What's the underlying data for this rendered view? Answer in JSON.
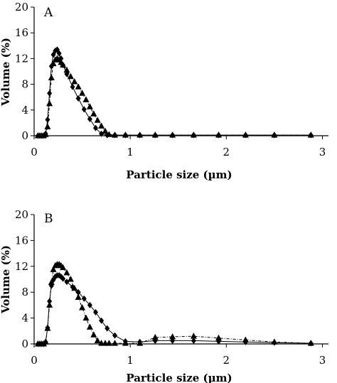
{
  "chart_data": [
    {
      "type": "line",
      "panel_label": "A",
      "xlabel": "Particle size (µm)",
      "ylabel": "Volume (%)",
      "xlim": [
        0,
        3.1
      ],
      "ylim": [
        0,
        20
      ],
      "xticks": [
        0,
        1,
        2,
        3
      ],
      "yticks": [
        0,
        4,
        8,
        12,
        16,
        20
      ],
      "grid": false,
      "series": [
        {
          "marker": "diamond",
          "line": "solid",
          "x": [
            0.04,
            0.06,
            0.08,
            0.1,
            0.12,
            0.14,
            0.16,
            0.18,
            0.2,
            0.22,
            0.24,
            0.26,
            0.28,
            0.3,
            0.34,
            0.4,
            0.46,
            0.52,
            0.58,
            0.64,
            0.7,
            0.76,
            0.84,
            0.95,
            1.1,
            1.26,
            1.44,
            1.66,
            1.92,
            2.2,
            2.5,
            2.88
          ],
          "y": [
            0,
            0,
            0,
            0,
            0.3,
            2.5,
            6.6,
            10.8,
            12.6,
            13.2,
            13.4,
            12.8,
            12.0,
            11.0,
            9.6,
            7.6,
            5.8,
            4.1,
            2.6,
            1.2,
            0.3,
            0.1,
            0.1,
            0.1,
            0.1,
            0.1,
            0.1,
            0.1,
            0.1,
            0.1,
            0.1,
            0.1
          ]
        },
        {
          "marker": "triangle",
          "line": "dash-dot",
          "x": [
            0.04,
            0.06,
            0.08,
            0.1,
            0.12,
            0.14,
            0.16,
            0.18,
            0.2,
            0.22,
            0.24,
            0.26,
            0.28,
            0.3,
            0.34,
            0.38,
            0.42,
            0.46,
            0.5,
            0.54,
            0.58,
            0.62,
            0.66,
            0.7,
            0.74,
            0.78,
            0.84,
            0.95,
            1.1,
            1.26,
            1.44,
            1.66,
            1.92,
            2.2,
            2.5,
            2.88
          ],
          "y": [
            0,
            0,
            0,
            0,
            0.2,
            1.4,
            5.0,
            9.0,
            11.2,
            11.8,
            12.0,
            11.8,
            11.4,
            11.0,
            10.2,
            9.2,
            8.4,
            7.6,
            6.6,
            5.6,
            4.5,
            3.4,
            2.4,
            1.5,
            0.7,
            0.2,
            0.1,
            0.1,
            0.1,
            0.1,
            0.1,
            0.1,
            0.1,
            0.1,
            0.1,
            0.1
          ]
        }
      ]
    },
    {
      "type": "line",
      "panel_label": "B",
      "xlabel": "Particle size (µm)",
      "ylabel": "Volume (%)",
      "xlim": [
        0,
        3.1
      ],
      "ylim": [
        0,
        20
      ],
      "xticks": [
        0,
        1,
        2,
        3
      ],
      "yticks": [
        0,
        4,
        8,
        12,
        16,
        20
      ],
      "grid": false,
      "series": [
        {
          "marker": "diamond",
          "line": "solid",
          "x": [
            0.04,
            0.06,
            0.08,
            0.1,
            0.12,
            0.14,
            0.16,
            0.18,
            0.2,
            0.22,
            0.24,
            0.26,
            0.28,
            0.3,
            0.34,
            0.4,
            0.46,
            0.52,
            0.58,
            0.64,
            0.7,
            0.76,
            0.84,
            0.95,
            1.1,
            1.26,
            1.44,
            1.66,
            1.92,
            2.2,
            2.5,
            2.88
          ],
          "y": [
            0,
            0,
            0,
            0,
            0.3,
            2.5,
            6.6,
            9.0,
            9.9,
            10.4,
            10.6,
            10.6,
            10.4,
            10.1,
            9.6,
            8.8,
            8.0,
            7.0,
            6.0,
            4.9,
            3.6,
            2.4,
            1.3,
            0.4,
            0.3,
            0.5,
            0.5,
            0.5,
            0.4,
            0.3,
            0.2,
            0.1
          ]
        },
        {
          "marker": "triangle",
          "line": "dash-dot",
          "x": [
            0.04,
            0.06,
            0.08,
            0.1,
            0.12,
            0.14,
            0.16,
            0.18,
            0.2,
            0.22,
            0.24,
            0.26,
            0.28,
            0.3,
            0.34,
            0.38,
            0.42,
            0.46,
            0.5,
            0.54,
            0.58,
            0.62,
            0.66,
            0.7,
            0.74,
            0.78,
            0.84,
            0.95,
            1.1,
            1.26,
            1.44,
            1.66,
            1.92,
            2.2,
            2.5,
            2.88
          ],
          "y": [
            0,
            0,
            0,
            0,
            0.3,
            2.4,
            6.0,
            9.5,
            11.5,
            12.1,
            12.3,
            12.3,
            12.1,
            11.8,
            11.0,
            10.0,
            8.6,
            7.2,
            5.6,
            4.0,
            2.6,
            1.4,
            0.5,
            0.1,
            0.1,
            0.1,
            0.1,
            0.1,
            0.1,
            1.0,
            1.1,
            1.2,
            0.9,
            0.6,
            0.3,
            0.1
          ]
        }
      ]
    }
  ]
}
